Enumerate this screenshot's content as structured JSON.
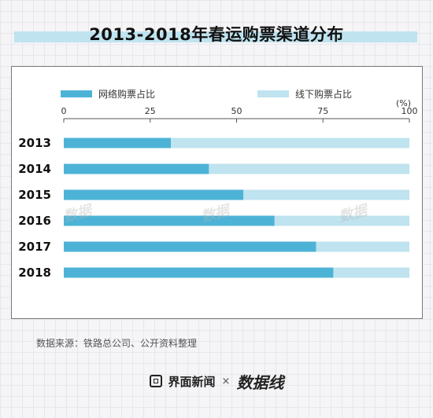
{
  "title": "2013-2018年春运购票渠道分布",
  "legend": {
    "online_label": "网络购票占比",
    "offline_label": "线下购票占比"
  },
  "colors": {
    "online": "#4db3d6",
    "offline": "#bfe3ef",
    "title_band": "#bfe3ef"
  },
  "source": "数据来源：铁路总公司、公开资料整理",
  "footer": {
    "brand1": "界面新闻",
    "separator": "×",
    "brand2": "数据线"
  },
  "chart_data": {
    "type": "bar",
    "orientation": "horizontal",
    "stacked": true,
    "unit_label": "(%)",
    "xlim": [
      0,
      100
    ],
    "xticks": [
      0,
      25,
      50,
      75,
      100
    ],
    "categories": [
      "2013",
      "2014",
      "2015",
      "2016",
      "2017",
      "2018"
    ],
    "series": [
      {
        "name": "网络购票占比",
        "values": [
          31,
          42,
          52,
          61,
          73,
          78
        ]
      },
      {
        "name": "线下购票占比",
        "values": [
          69,
          58,
          48,
          39,
          27,
          22
        ]
      }
    ]
  }
}
